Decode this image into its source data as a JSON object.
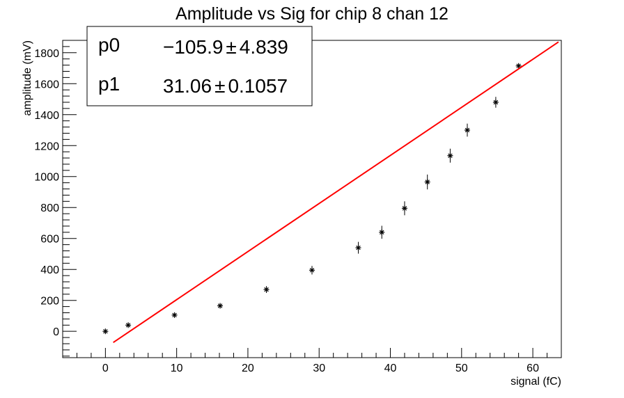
{
  "chart_data": {
    "type": "scatter",
    "title": "Amplitude vs Sig for chip 8 chan 12",
    "xlabel": "signal (fC)",
    "ylabel": "amplitude (mV)",
    "xlim": [
      -6,
      64
    ],
    "ylim": [
      -170,
      1880
    ],
    "x_ticks": [
      0,
      10,
      20,
      30,
      40,
      50,
      60
    ],
    "y_ticks": [
      0,
      200,
      400,
      600,
      800,
      1000,
      1200,
      1400,
      1600,
      1800
    ],
    "x_minor_step": 2,
    "y_minor_step": 40,
    "grid": false,
    "series": [
      {
        "marker": "star",
        "color": "#000000",
        "x": [
          0.0,
          3.2,
          9.7,
          16.1,
          22.6,
          29.0,
          35.5,
          38.8,
          42.0,
          45.2,
          48.4,
          50.8,
          54.8,
          58.0
        ],
        "y": [
          0,
          40,
          105,
          165,
          270,
          395,
          540,
          640,
          795,
          965,
          1135,
          1300,
          1480,
          1715
        ],
        "yerr": [
          4,
          8,
          10,
          15,
          22,
          28,
          38,
          42,
          45,
          48,
          45,
          42,
          35,
          8
        ]
      }
    ],
    "fit": {
      "color": "#ff0000",
      "p0": -105.9,
      "p1": 31.06,
      "x_range": [
        1.1,
        63.6
      ]
    },
    "stats_box": {
      "rows": [
        {
          "name": "p0",
          "value": "−105.9",
          "pm": "±",
          "error": "4.839"
        },
        {
          "name": "p1",
          "value": "31.06",
          "pm": "±",
          "error": "0.1057"
        }
      ]
    }
  }
}
